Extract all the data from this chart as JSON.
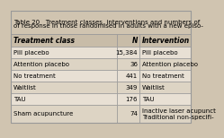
{
  "title_line1": "Table 20   Treatment classes, interventions and numbers of",
  "title_line2": "of response in those randomised in adults with a new episo-",
  "header": [
    "Treatment class",
    "N",
    "Intervention"
  ],
  "rows": [
    [
      "Pill placebo",
      "15,384",
      "Pill placebo"
    ],
    [
      "Attention placebo",
      "36",
      "Attention placebo"
    ],
    [
      "No treatment",
      "441",
      "No treatment"
    ],
    [
      "Waitlist",
      "349",
      "Waitlist"
    ],
    [
      "TAU",
      "176",
      "TAU"
    ],
    [
      "Sham acupuncture",
      "74",
      "Inactive laser acupunct\nTraditional non-specifi-"
    ]
  ],
  "title_bg": "#d0c4b0",
  "header_bg": "#c8bca8",
  "row_bg_light": "#e8e0d4",
  "row_bg_mid": "#ddd4c4",
  "border_color": "#999999",
  "text_color": "#000000",
  "title_fontsize": 5.0,
  "header_fontsize": 5.5,
  "cell_fontsize": 5.0,
  "fig_bg": "#d0c4b0"
}
